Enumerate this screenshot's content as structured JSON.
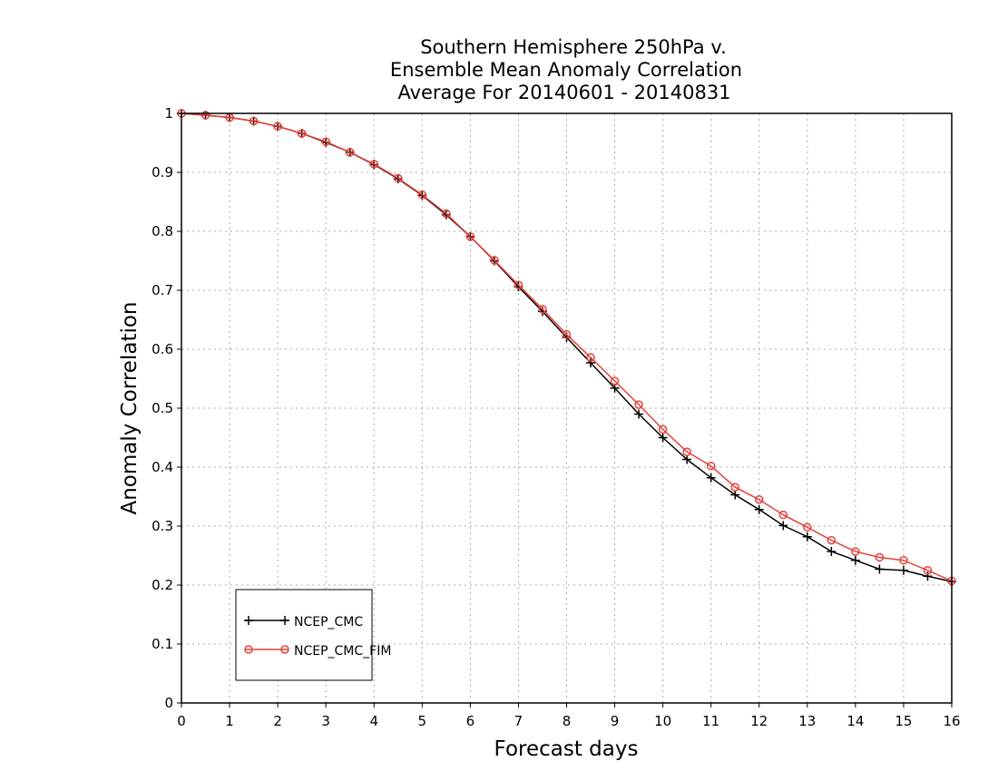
{
  "chart_data": {
    "type": "line",
    "title": [
      "Southern Hemisphere 250hPa v.",
      "Ensemble Mean Anomaly Correlation",
      "Average For 20140601 - 20140831"
    ],
    "xlabel": "Forecast days",
    "ylabel": "Anomaly Correlation",
    "xlim": [
      0,
      16
    ],
    "ylim": [
      0,
      1
    ],
    "xticks": [
      0,
      1,
      2,
      3,
      4,
      5,
      6,
      7,
      8,
      9,
      10,
      11,
      12,
      13,
      14,
      15,
      16
    ],
    "yticks": [
      0,
      0.1,
      0.2,
      0.3,
      0.4,
      0.5,
      0.6,
      0.7,
      0.8,
      0.9,
      1
    ],
    "ytick_labels": [
      "0",
      "0.1",
      "0.2",
      "0.3",
      "0.4",
      "0.5",
      "0.6",
      "0.7",
      "0.8",
      "0.9",
      "1"
    ],
    "grid": true,
    "legend_position": "bottom-left",
    "x": [
      0,
      0.5,
      1,
      1.5,
      2,
      2.5,
      3,
      3.5,
      4,
      4.5,
      5,
      5.5,
      6,
      6.5,
      7,
      7.5,
      8,
      8.5,
      9,
      9.5,
      10,
      10.5,
      11,
      11.5,
      12,
      12.5,
      13,
      13.5,
      14,
      14.5,
      15,
      15.5,
      16
    ],
    "series": [
      {
        "name": "NCEP_CMC",
        "color": "#000000",
        "marker": "plus",
        "values": [
          1.0,
          0.997,
          0.993,
          0.987,
          0.978,
          0.966,
          0.951,
          0.934,
          0.913,
          0.889,
          0.861,
          0.828,
          0.791,
          0.75,
          0.706,
          0.664,
          0.62,
          0.577,
          0.534,
          0.49,
          0.45,
          0.413,
          0.382,
          0.353,
          0.328,
          0.301,
          0.282,
          0.257,
          0.242,
          0.227,
          0.225,
          0.215,
          0.206
        ]
      },
      {
        "name": "NCEP_CMC_FIM",
        "color": "#e8403a",
        "marker": "circle",
        "values": [
          1.0,
          0.997,
          0.993,
          0.987,
          0.978,
          0.966,
          0.952,
          0.934,
          0.914,
          0.89,
          0.862,
          0.83,
          0.791,
          0.751,
          0.709,
          0.668,
          0.625,
          0.586,
          0.546,
          0.506,
          0.464,
          0.426,
          0.402,
          0.366,
          0.345,
          0.319,
          0.298,
          0.276,
          0.257,
          0.247,
          0.242,
          0.225,
          0.207
        ]
      }
    ]
  }
}
